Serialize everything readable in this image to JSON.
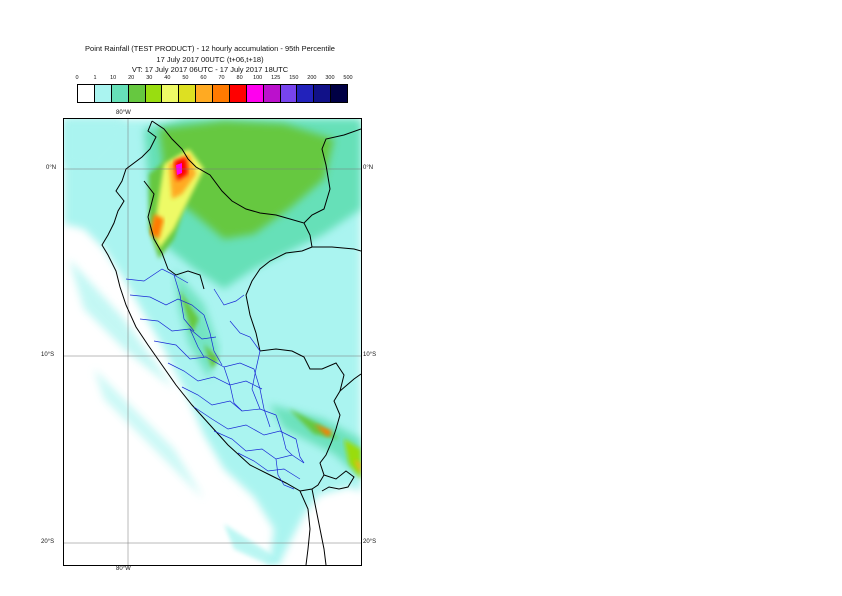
{
  "title": {
    "line1": "Point Rainfall (TEST PRODUCT) - 12 hourly accumulation - 95th Percentile",
    "line2": "17 July 2017 00UTC (t+06,t+18)",
    "line3": "VT: 17 July 2017 06UTC - 17 July 2017 18UTC"
  },
  "legend": {
    "ticks": [
      "0",
      "1",
      "10",
      "20",
      "30",
      "40",
      "50",
      "60",
      "70",
      "80",
      "100",
      "125",
      "150",
      "200",
      "300",
      "500"
    ],
    "colors": [
      "#ffffff",
      "#aaf4f0",
      "#66e0b8",
      "#66c840",
      "#99dd10",
      "#eefa66",
      "#dde022",
      "#ffaa22",
      "#ff7a00",
      "#ff0000",
      "#ff00ee",
      "#bb11cc",
      "#7744ee",
      "#2222bb",
      "#111188",
      "#000044"
    ]
  },
  "map": {
    "lon_label_top": "80°W",
    "lon_label_bottom": "80°W",
    "lat_labels": [
      {
        "left": "0°N",
        "right": "0°N"
      },
      {
        "left": "10°S",
        "right": "10°S"
      },
      {
        "left": "20°S",
        "right": "20°S"
      }
    ]
  }
}
